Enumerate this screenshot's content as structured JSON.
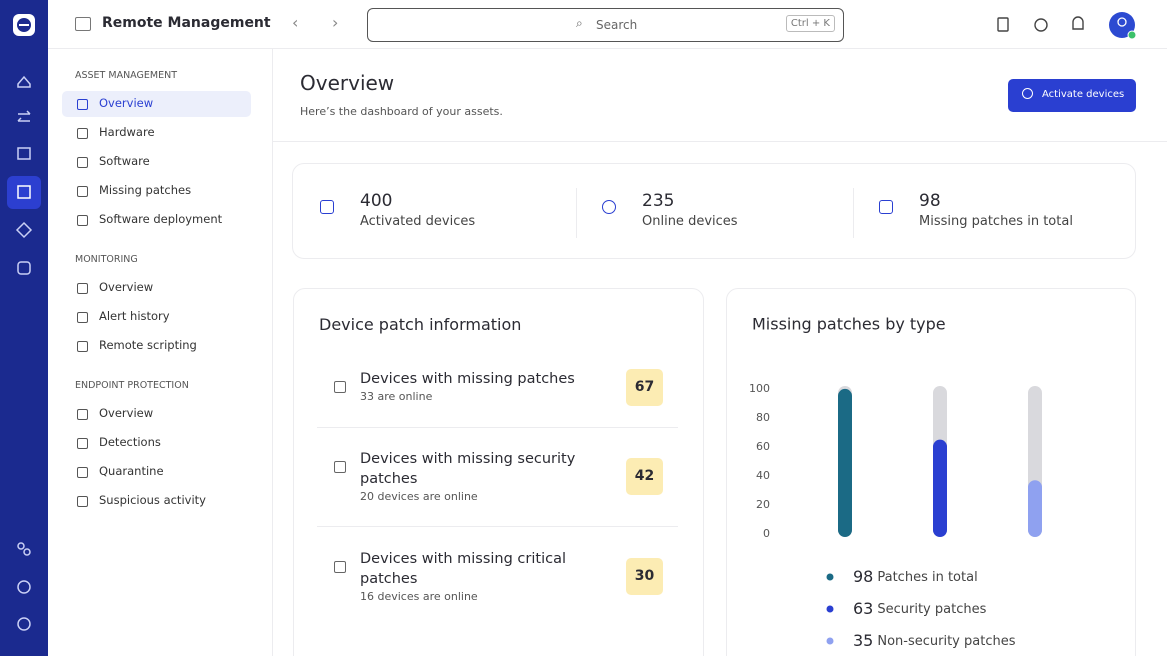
{
  "app": {
    "title": "Remote Management"
  },
  "search": {
    "placeholder": "Search",
    "shortcut": "Ctrl + K"
  },
  "sidebar": {
    "sections": [
      {
        "heading": "ASSET MANAGEMENT",
        "items": [
          "Overview",
          "Hardware",
          "Software",
          "Missing patches",
          "Software deployment"
        ]
      },
      {
        "heading": "MONITORING",
        "items": [
          "Overview",
          "Alert history",
          "Remote scripting"
        ]
      },
      {
        "heading": "ENDPOINT PROTECTION",
        "items": [
          "Overview",
          "Detections",
          "Quarantine",
          "Suspicious activity"
        ]
      }
    ]
  },
  "page": {
    "title": "Overview",
    "subtitle": "Here’s the dashboard of your assets.",
    "action": "Activate devices"
  },
  "stats": [
    {
      "value": 400,
      "label": "Activated devices"
    },
    {
      "value": 235,
      "label": "Online devices"
    },
    {
      "value": 98,
      "label": "Missing patches in total"
    }
  ],
  "patch_info": {
    "title": "Device patch information",
    "rows": [
      {
        "title": "Devices with missing patches",
        "note": "33 are online",
        "count": 67
      },
      {
        "title": "Devices with missing security patches",
        "note": "20 devices are online",
        "count": 42
      },
      {
        "title": "Devices with missing critical patches",
        "note": "16 devices are online",
        "count": 30
      }
    ]
  },
  "patches_chart": {
    "type": "bar",
    "title": "Missing patches by type",
    "ylim": [
      0,
      100
    ],
    "yticks": [
      0,
      20,
      40,
      60,
      80,
      100
    ],
    "track_color": "#d9d9dd",
    "series": [
      {
        "name": "Patches in total",
        "value": 98,
        "color": "#1b6a85"
      },
      {
        "name": "Security patches",
        "value": 63,
        "color": "#2a3fd1"
      },
      {
        "name": "Non-security patches",
        "value": 35,
        "color": "#8fa1f0"
      }
    ]
  }
}
